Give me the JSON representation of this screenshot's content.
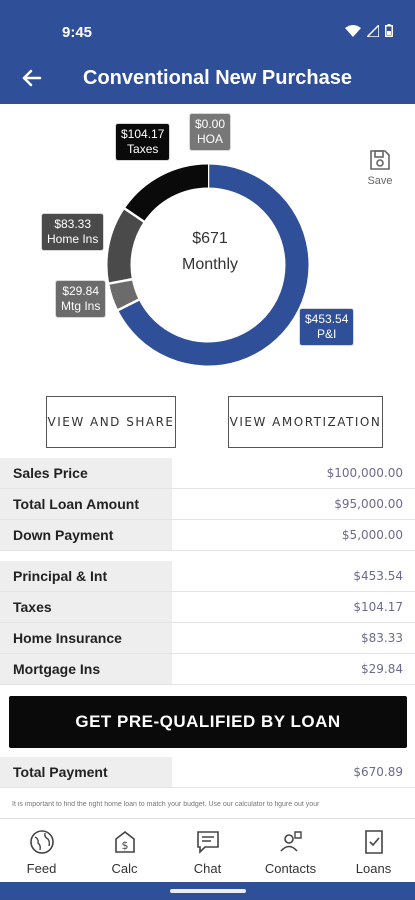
{
  "status": {
    "time": "9:45"
  },
  "header": {
    "title": "Conventional New Purchase"
  },
  "chart_data": {
    "type": "pie",
    "style": "donut",
    "center_value": "$671",
    "center_label": "Monthly",
    "slices": [
      {
        "label": "P&I",
        "display": "$453.54",
        "value": 453.54,
        "color": "#2f4f98"
      },
      {
        "label": "Mtg Ins",
        "display": "$29.84",
        "value": 29.84,
        "color": "#6b6b6b"
      },
      {
        "label": "Home Ins",
        "display": "$83.33",
        "value": 83.33,
        "color": "#4a4a4a"
      },
      {
        "label": "Taxes",
        "display": "$104.17",
        "value": 104.17,
        "color": "#0a0a0a"
      },
      {
        "label": "HOA",
        "display": "$0.00",
        "value": 0,
        "color": "#777777"
      }
    ]
  },
  "save": {
    "label": "Save"
  },
  "actions": {
    "view_share": "VIEW AND SHARE",
    "view_amort": "VIEW AMORTIZATION"
  },
  "loan_rows": [
    {
      "label": "Sales Price",
      "value": "$100,000.00"
    },
    {
      "label": "Total Loan Amount",
      "value": "$95,000.00"
    },
    {
      "label": "Down Payment",
      "value": "$5,000.00"
    }
  ],
  "payment_rows": [
    {
      "label": "Principal & Int",
      "value": "$453.54"
    },
    {
      "label": "Taxes",
      "value": "$104.17"
    },
    {
      "label": "Home Insurance",
      "value": "$83.33"
    },
    {
      "label": "Mortgage Ins",
      "value": "$29.84"
    }
  ],
  "cta": {
    "label": "GET PRE-QUALIFIED BY LOAN"
  },
  "total": {
    "label": "Total Payment",
    "value": "$670.89"
  },
  "disclaimer": "It is important to find the right home loan to match your budget. Use our calculator to figure out your",
  "tabs": [
    {
      "label": "Feed",
      "icon": "globe-icon"
    },
    {
      "label": "Calc",
      "icon": "calculator-icon"
    },
    {
      "label": "Chat",
      "icon": "chat-icon"
    },
    {
      "label": "Contacts",
      "icon": "contacts-icon"
    },
    {
      "label": "Loans",
      "icon": "loans-icon"
    }
  ]
}
